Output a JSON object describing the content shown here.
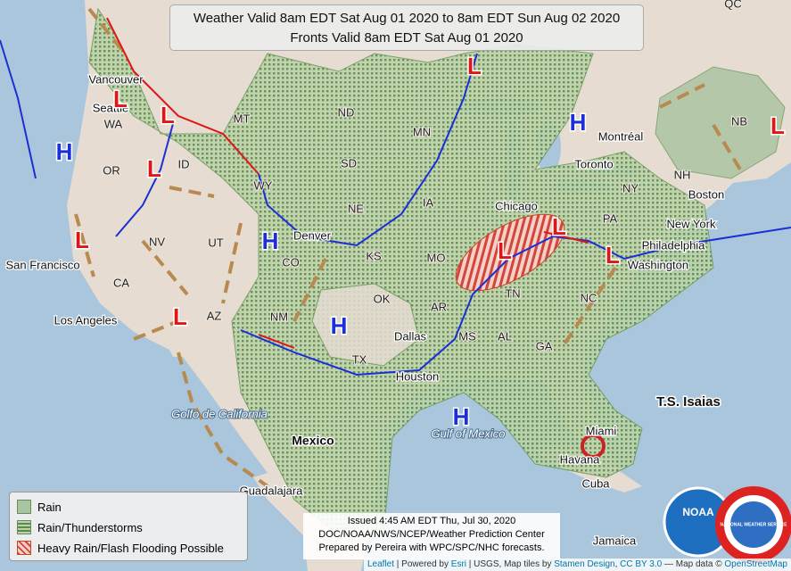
{
  "header": {
    "lines": [
      "Weather Valid 8am EDT Sat Aug 01 2020 to 8am EDT Sun Aug 02 2020",
      "Fronts Valid 8am EDT Sat Aug 01 2020"
    ]
  },
  "legend": {
    "items": [
      "Rain",
      "Rain/Thunderstorms",
      "Heavy Rain/Flash Flooding Possible"
    ]
  },
  "issued": {
    "lines": [
      "Issued 4:45 AM EDT Thu, Jul 30, 2020",
      "DOC/NOAA/NWS/NCEP/Weather Prediction Center",
      "Prepared by Pereira with WPC/SPC/NHC forecasts."
    ]
  },
  "attribution": {
    "parts": [
      "Leaflet",
      " | Powered by ",
      "Esri",
      " | USGS, Map tiles by ",
      "Stamen Design",
      ", ",
      "CC BY 3.0",
      " — Map data © ",
      "OpenStreetMap"
    ]
  },
  "map": {
    "states": [
      "WA",
      "OR",
      "CA",
      "NV",
      "ID",
      "MT",
      "WY",
      "UT",
      "AZ",
      "CO",
      "NM",
      "ND",
      "SD",
      "NE",
      "KS",
      "OK",
      "TX",
      "MN",
      "IA",
      "MO",
      "AR",
      "MS",
      "AL",
      "GA",
      "TN",
      "NC",
      "PA",
      "NY",
      "NH",
      "NB",
      "QC"
    ],
    "cities": [
      "Vancouver",
      "Seattle",
      "San Francisco",
      "Los Angeles",
      "Denver",
      "Dallas",
      "Houston",
      "Chicago",
      "Toronto",
      "Montréal",
      "Boston",
      "New York",
      "Philadelphia",
      "Washington",
      "Miami",
      "Havana",
      "Guadalajara",
      "Cuba",
      "Jamaica"
    ],
    "countries": [
      "Mexico"
    ],
    "water": [
      "Golfo de California",
      "Gulf of Mexico"
    ],
    "highs": [
      "H",
      "H",
      "H",
      "H",
      "H"
    ],
    "lows": [
      "L",
      "L",
      "L",
      "L",
      "L",
      "L",
      "L",
      "L",
      "L",
      "L"
    ],
    "storm": "T.S. Isaias",
    "logos": [
      "NOAA",
      "NATIONAL WEATHER SERVICE"
    ]
  }
}
